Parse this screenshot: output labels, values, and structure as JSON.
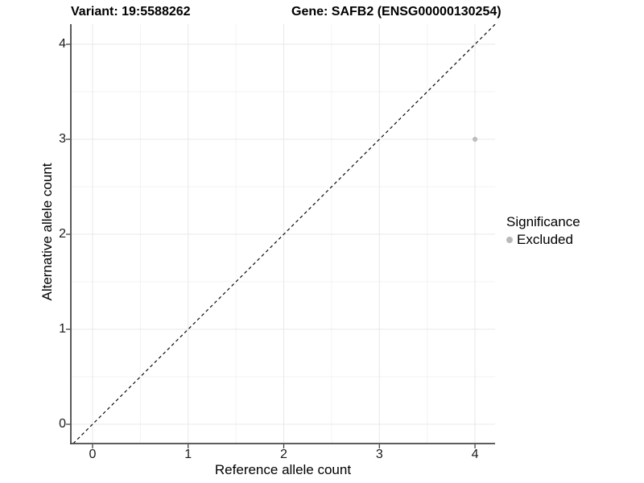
{
  "chart_data": {
    "type": "scatter",
    "title_left": "Variant: 19:5588262",
    "title_right": "Gene: SAFB2 (ENSG00000130254)",
    "xlabel": "Reference allele count",
    "ylabel": "Alternative allele count",
    "xticks": [
      0,
      1,
      2,
      3,
      4
    ],
    "yticks": [
      0,
      1,
      2,
      3,
      4
    ],
    "xlim": [
      -0.227,
      4.21
    ],
    "ylim": [
      -0.203,
      4.212
    ],
    "grid": {
      "major": true,
      "minor": true
    },
    "points": [
      {
        "x": 4,
        "y": 3,
        "series": "Excluded"
      }
    ],
    "reference_line": {
      "kind": "identity",
      "slope": 1,
      "intercept": 0,
      "style": "dashed"
    },
    "legend": {
      "title": "Significance",
      "position": "right",
      "items": [
        {
          "label": "Excluded",
          "color": "#b9b9b9"
        }
      ]
    },
    "colors": {
      "point": "#bdbdbd",
      "grid_major": "#e8e8e8",
      "grid_minor": "#f3f3f3",
      "axis_line": "#474747",
      "reference_line": "#0a0a0a",
      "tick_mark": "#333333"
    }
  }
}
